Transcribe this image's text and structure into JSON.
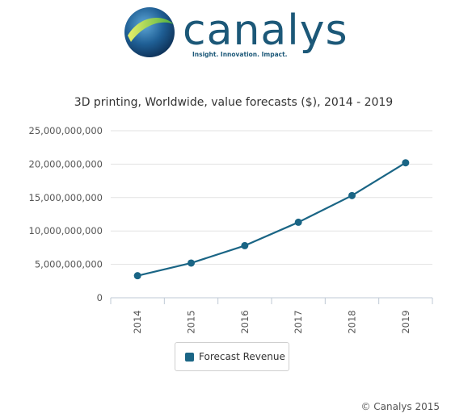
{
  "brand": {
    "name": "canalys",
    "tagline": "Insight. Innovation. Impact.",
    "color": "#1c5878"
  },
  "chart_data": {
    "type": "line",
    "title": "3D printing, Worldwide, value forecasts ($), 2014 - 2019",
    "xlabel": "",
    "ylabel": "",
    "categories": [
      "2014",
      "2015",
      "2016",
      "2017",
      "2018",
      "2019"
    ],
    "series": [
      {
        "name": "Forecast Revenue",
        "color": "#1a6585",
        "values": [
          3300000000,
          5200000000,
          7800000000,
          11300000000,
          15300000000,
          20200000000
        ]
      }
    ],
    "ylim": [
      0,
      25000000000
    ],
    "yticks": [
      "25,000,000,000",
      "20,000,000,000",
      "15,000,000,000",
      "10,000,000,000",
      "5,000,000,000",
      "0"
    ],
    "grid": true,
    "legend": "bottom-center"
  },
  "legend": {
    "label": "Forecast Revenue"
  },
  "footer": {
    "copyright": "© Canalys 2015"
  }
}
